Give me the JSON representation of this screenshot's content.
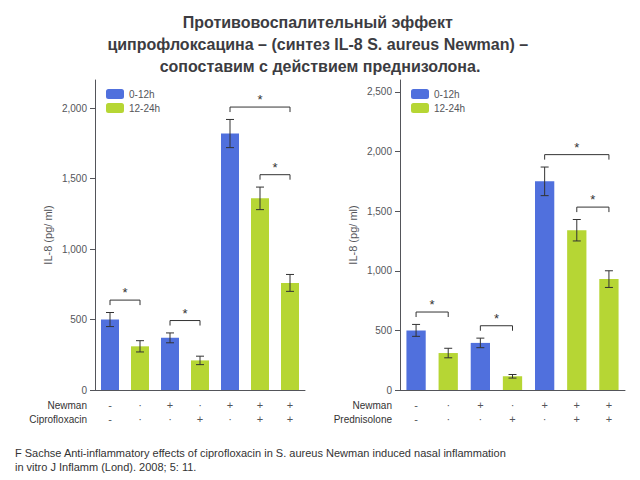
{
  "title": "Противовоспалительный эффект ципрофлоксацина – (синтез IL-8 S. aureus Newman) – сопоставим с действием преднизолона.",
  "annotations": [
    "F Sachse Anti-inflammatory effects of ciprofloxacin in S. aureus Newman induced nasal inflammation in vitro J Inflamm (Lond). 2008; 5: 11."
  ],
  "chart_data": [
    {
      "type": "bar",
      "ylabel": "IL-8 (pg/ ml)",
      "xlabel": [
        "Newman",
        "Ciprofloxacin"
      ],
      "categories": [
        "-\n-",
        "·\n·",
        "+\n·",
        "·\n+",
        "+\n·",
        "+\n+",
        "+\n+"
      ],
      "series": [
        {
          "name": "0-12h",
          "values": [
            500,
            null,
            370,
            null,
            1820,
            null,
            null
          ],
          "errors": [
            50,
            null,
            35,
            null,
            100,
            null,
            null
          ]
        },
        {
          "name": "12-24h",
          "values": [
            null,
            310,
            null,
            210,
            null,
            1360,
            760
          ],
          "errors": [
            null,
            40,
            null,
            30,
            null,
            80,
            60
          ]
        }
      ],
      "ylim": [
        0,
        2200
      ],
      "yticks": [
        0,
        500,
        1000,
        1500,
        2000
      ],
      "grid": false,
      "legend": "upper left",
      "annotations": [
        {
          "text": "*",
          "from": 0,
          "to": 1
        },
        {
          "text": "*",
          "from": 2,
          "to": 3
        },
        {
          "text": "*",
          "from": 4,
          "to": 6
        },
        {
          "text": "*",
          "from": 5,
          "to": 6
        }
      ]
    },
    {
      "type": "bar",
      "ylabel": "IL-8 (pg/ ml)",
      "xlabel": [
        "Newman",
        "Prednisolone"
      ],
      "categories": [
        "-\n-",
        "·\n·",
        "+\n·",
        "·\n+",
        "+\n·",
        "+\n+",
        "+\n+"
      ],
      "series": [
        {
          "name": "0-12h",
          "values": [
            500,
            null,
            395,
            null,
            1750,
            null,
            null
          ],
          "errors": [
            50,
            null,
            40,
            null,
            120,
            null,
            null
          ]
        },
        {
          "name": "12-24h",
          "values": [
            null,
            310,
            null,
            115,
            null,
            1340,
            930
          ],
          "errors": [
            null,
            40,
            null,
            15,
            null,
            90,
            70
          ]
        }
      ],
      "ylim": [
        0,
        2600
      ],
      "yticks": [
        0,
        500,
        1000,
        1500,
        2000,
        2500
      ],
      "grid": false,
      "legend": "upper left",
      "annotations": [
        {
          "text": "*",
          "from": 0,
          "to": 1
        },
        {
          "text": "*",
          "from": 2,
          "to": 3
        },
        {
          "text": "*",
          "from": 4,
          "to": 6
        },
        {
          "text": "*",
          "from": 5,
          "to": 6
        }
      ]
    }
  ]
}
